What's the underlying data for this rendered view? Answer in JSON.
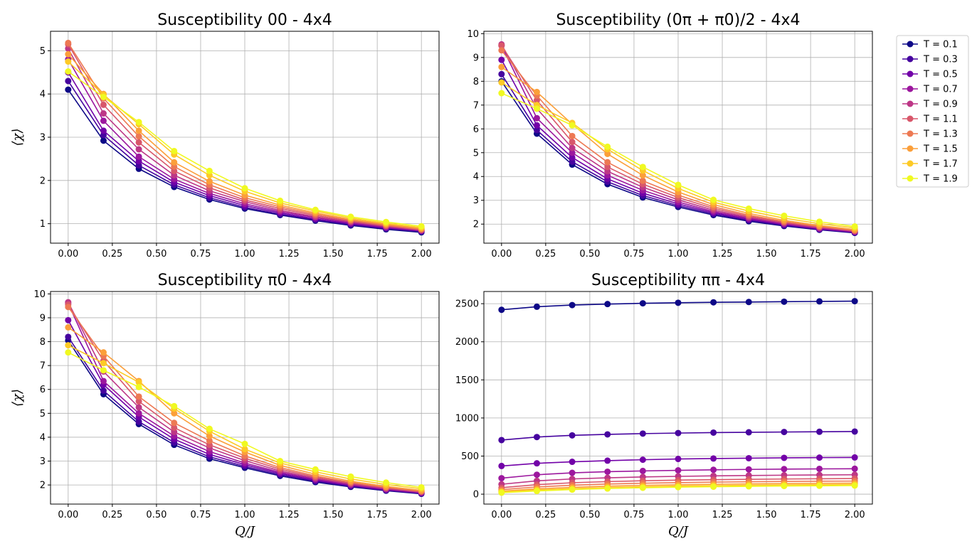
{
  "figure": {
    "colors": [
      "#0d0887",
      "#46039f",
      "#7201a8",
      "#9c179e",
      "#bd3786",
      "#d8576b",
      "#ed7953",
      "#fb9f3a",
      "#fdca26",
      "#f0f921"
    ],
    "legend_labels": [
      "T = 0.1",
      "T = 0.3",
      "T = 0.5",
      "T = 0.7",
      "T = 0.9",
      "T = 1.1",
      "T = 1.3",
      "T = 1.5",
      "T = 1.7",
      "T = 1.9"
    ]
  },
  "chart_data": [
    {
      "type": "line",
      "title": "Susceptibility 00 - 4x4",
      "xlabel": "",
      "ylabel": "⟨χ⟩",
      "xlim": [
        -0.1,
        2.1
      ],
      "ylim": [
        0.55,
        5.45
      ],
      "xticks": [
        0.0,
        0.25,
        0.5,
        0.75,
        1.0,
        1.25,
        1.5,
        1.75,
        2.0
      ],
      "xtick_labels": [
        "0.00",
        "0.25",
        "0.50",
        "0.75",
        "1.00",
        "1.25",
        "1.50",
        "1.75",
        "2.00"
      ],
      "yticks": [
        1,
        2,
        3,
        4,
        5
      ],
      "ytick_labels": [
        "1",
        "2",
        "3",
        "4",
        "5"
      ],
      "grid": true,
      "x": [
        0.0,
        0.2,
        0.4,
        0.6,
        0.8,
        1.0,
        1.2,
        1.4,
        1.6,
        1.8,
        2.0
      ],
      "series": [
        {
          "name": "T = 0.1",
          "values": [
            4.1,
            2.92,
            2.27,
            1.85,
            1.56,
            1.35,
            1.2,
            1.07,
            0.96,
            0.87,
            0.8
          ]
        },
        {
          "name": "T = 0.3",
          "values": [
            4.3,
            3.05,
            2.35,
            1.9,
            1.6,
            1.38,
            1.22,
            1.09,
            0.98,
            0.89,
            0.82
          ]
        },
        {
          "name": "T = 0.5",
          "values": [
            4.5,
            3.15,
            2.45,
            1.96,
            1.65,
            1.42,
            1.25,
            1.11,
            1.0,
            0.9,
            0.83
          ]
        },
        {
          "name": "T = 0.7",
          "values": [
            4.8,
            3.38,
            2.55,
            2.03,
            1.7,
            1.46,
            1.28,
            1.14,
            1.02,
            0.92,
            0.84
          ]
        },
        {
          "name": "T = 0.9",
          "values": [
            5.05,
            3.55,
            2.72,
            2.12,
            1.76,
            1.51,
            1.31,
            1.16,
            1.04,
            0.94,
            0.85
          ]
        },
        {
          "name": "T = 1.1",
          "values": [
            5.15,
            3.75,
            2.88,
            2.22,
            1.83,
            1.55,
            1.35,
            1.19,
            1.06,
            0.95,
            0.86
          ]
        },
        {
          "name": "T = 1.3",
          "values": [
            5.18,
            3.9,
            3.02,
            2.32,
            1.9,
            1.6,
            1.39,
            1.22,
            1.08,
            0.97,
            0.87
          ]
        },
        {
          "name": "T = 1.5",
          "values": [
            4.92,
            4.0,
            3.15,
            2.42,
            1.98,
            1.66,
            1.43,
            1.25,
            1.1,
            0.99,
            0.89
          ]
        },
        {
          "name": "T = 1.7",
          "values": [
            4.75,
            3.98,
            3.3,
            2.6,
            2.12,
            1.75,
            1.48,
            1.29,
            1.13,
            1.01,
            0.91
          ]
        },
        {
          "name": "T = 1.9",
          "values": [
            4.52,
            3.93,
            3.35,
            2.68,
            2.22,
            1.82,
            1.53,
            1.32,
            1.16,
            1.04,
            0.94
          ]
        }
      ]
    },
    {
      "type": "line",
      "title": "Susceptibility (0π + π0)/2 - 4x4",
      "xlabel": "",
      "ylabel": "",
      "xlim": [
        -0.1,
        2.1
      ],
      "ylim": [
        1.2,
        10.1
      ],
      "xticks": [
        0.0,
        0.25,
        0.5,
        0.75,
        1.0,
        1.25,
        1.5,
        1.75,
        2.0
      ],
      "xtick_labels": [
        "0.00",
        "0.25",
        "0.50",
        "0.75",
        "1.00",
        "1.25",
        "1.50",
        "1.75",
        "2.00"
      ],
      "yticks": [
        2,
        3,
        4,
        5,
        6,
        7,
        8,
        9,
        10
      ],
      "ytick_labels": [
        "2",
        "3",
        "4",
        "5",
        "6",
        "7",
        "8",
        "9",
        "10"
      ],
      "grid": true,
      "x": [
        0.0,
        0.2,
        0.4,
        0.6,
        0.8,
        1.0,
        1.2,
        1.4,
        1.6,
        1.8,
        2.0
      ],
      "series": [
        {
          "name": "T = 0.1",
          "values": [
            8.0,
            5.8,
            4.5,
            3.68,
            3.12,
            2.72,
            2.38,
            2.12,
            1.92,
            1.76,
            1.63
          ]
        },
        {
          "name": "T = 0.3",
          "values": [
            8.3,
            5.95,
            4.62,
            3.78,
            3.2,
            2.78,
            2.43,
            2.16,
            1.95,
            1.78,
            1.65
          ]
        },
        {
          "name": "T = 0.5",
          "values": [
            8.9,
            6.15,
            4.8,
            3.9,
            3.3,
            2.85,
            2.48,
            2.2,
            1.98,
            1.8,
            1.66
          ]
        },
        {
          "name": "T = 0.7",
          "values": [
            9.5,
            6.45,
            5.0,
            4.05,
            3.42,
            2.93,
            2.53,
            2.24,
            2.01,
            1.82,
            1.68
          ]
        },
        {
          "name": "T = 0.9",
          "values": [
            9.55,
            6.85,
            5.2,
            4.22,
            3.55,
            3.02,
            2.59,
            2.28,
            2.04,
            1.85,
            1.7
          ]
        },
        {
          "name": "T = 1.1",
          "values": [
            9.5,
            7.2,
            5.45,
            4.4,
            3.68,
            3.12,
            2.66,
            2.33,
            2.08,
            1.88,
            1.72
          ]
        },
        {
          "name": "T = 1.3",
          "values": [
            9.3,
            7.4,
            5.7,
            4.6,
            3.82,
            3.22,
            2.73,
            2.38,
            2.11,
            1.9,
            1.74
          ]
        },
        {
          "name": "T = 1.5",
          "values": [
            8.6,
            7.55,
            6.2,
            4.95,
            4.05,
            3.35,
            2.82,
            2.45,
            2.16,
            1.94,
            1.77
          ]
        },
        {
          "name": "T = 1.7",
          "values": [
            7.95,
            7.0,
            6.25,
            5.15,
            4.25,
            3.5,
            2.92,
            2.55,
            2.25,
            2.02,
            1.84
          ]
        },
        {
          "name": "T = 1.9",
          "values": [
            7.5,
            6.85,
            6.15,
            5.25,
            4.4,
            3.65,
            3.02,
            2.65,
            2.35,
            2.1,
            1.9
          ]
        }
      ]
    },
    {
      "type": "line",
      "title": "Susceptibility π0 - 4x4",
      "xlabel": "Q/J",
      "ylabel": "⟨χ⟩",
      "xlim": [
        -0.1,
        2.1
      ],
      "ylim": [
        1.2,
        10.1
      ],
      "xticks": [
        0.0,
        0.25,
        0.5,
        0.75,
        1.0,
        1.25,
        1.5,
        1.75,
        2.0
      ],
      "xtick_labels": [
        "0.00",
        "0.25",
        "0.50",
        "0.75",
        "1.00",
        "1.25",
        "1.50",
        "1.75",
        "2.00"
      ],
      "yticks": [
        2,
        3,
        4,
        5,
        6,
        7,
        8,
        9,
        10
      ],
      "ytick_labels": [
        "2",
        "3",
        "4",
        "5",
        "6",
        "7",
        "8",
        "9",
        "10"
      ],
      "grid": true,
      "x": [
        0.0,
        0.2,
        0.4,
        0.6,
        0.8,
        1.0,
        1.2,
        1.4,
        1.6,
        1.8,
        2.0
      ],
      "series": [
        {
          "name": "T = 0.1",
          "values": [
            8.05,
            5.8,
            4.55,
            3.68,
            3.1,
            2.72,
            2.38,
            2.12,
            1.92,
            1.76,
            1.63
          ]
        },
        {
          "name": "T = 0.3",
          "values": [
            8.2,
            5.95,
            4.65,
            3.78,
            3.18,
            2.78,
            2.43,
            2.16,
            1.95,
            1.78,
            1.65
          ]
        },
        {
          "name": "T = 0.5",
          "values": [
            8.9,
            6.2,
            4.85,
            3.92,
            3.28,
            2.85,
            2.48,
            2.2,
            1.98,
            1.8,
            1.66
          ]
        },
        {
          "name": "T = 0.7",
          "values": [
            9.6,
            6.35,
            5.0,
            4.05,
            3.4,
            2.92,
            2.53,
            2.24,
            2.01,
            1.82,
            1.68
          ]
        },
        {
          "name": "T = 0.9",
          "values": [
            9.65,
            6.75,
            5.25,
            4.22,
            3.55,
            3.02,
            2.59,
            2.28,
            2.04,
            1.85,
            1.7
          ]
        },
        {
          "name": "T = 1.1",
          "values": [
            9.55,
            7.2,
            5.5,
            4.4,
            3.68,
            3.12,
            2.66,
            2.33,
            2.08,
            1.88,
            1.72
          ]
        },
        {
          "name": "T = 1.3",
          "values": [
            9.45,
            7.4,
            5.7,
            4.6,
            3.85,
            3.22,
            2.73,
            2.38,
            2.11,
            1.9,
            1.74
          ]
        },
        {
          "name": "T = 1.5",
          "values": [
            8.6,
            7.55,
            6.35,
            5.0,
            4.05,
            3.38,
            2.82,
            2.45,
            2.16,
            1.94,
            1.77
          ]
        },
        {
          "name": "T = 1.7",
          "values": [
            7.85,
            7.1,
            6.3,
            5.2,
            4.25,
            3.5,
            2.92,
            2.55,
            2.25,
            2.02,
            1.84
          ]
        },
        {
          "name": "T = 1.9",
          "values": [
            7.55,
            6.8,
            6.1,
            5.3,
            4.35,
            3.72,
            3.0,
            2.65,
            2.35,
            2.1,
            1.9
          ]
        }
      ]
    },
    {
      "type": "line",
      "title": "Susceptibility ππ - 4x4",
      "xlabel": "Q/J",
      "ylabel": "",
      "xlim": [
        -0.1,
        2.1
      ],
      "ylim": [
        -130,
        2660
      ],
      "xticks": [
        0.0,
        0.25,
        0.5,
        0.75,
        1.0,
        1.25,
        1.5,
        1.75,
        2.0
      ],
      "xtick_labels": [
        "0.00",
        "0.25",
        "0.50",
        "0.75",
        "1.00",
        "1.25",
        "1.50",
        "1.75",
        "2.00"
      ],
      "yticks": [
        0,
        500,
        1000,
        1500,
        2000,
        2500
      ],
      "ytick_labels": [
        "0",
        "500",
        "1000",
        "1500",
        "2000",
        "2500"
      ],
      "grid": true,
      "x": [
        0.0,
        0.2,
        0.4,
        0.6,
        0.8,
        1.0,
        1.2,
        1.4,
        1.6,
        1.8,
        2.0
      ],
      "series": [
        {
          "name": "T = 0.1",
          "values": [
            2420,
            2460,
            2482,
            2495,
            2505,
            2512,
            2518,
            2522,
            2526,
            2530,
            2533
          ]
        },
        {
          "name": "T = 0.3",
          "values": [
            710,
            750,
            772,
            785,
            795,
            802,
            808,
            812,
            816,
            819,
            822
          ]
        },
        {
          "name": "T = 0.5",
          "values": [
            370,
            405,
            425,
            440,
            452,
            462,
            468,
            472,
            477,
            480,
            482
          ]
        },
        {
          "name": "T = 0.7",
          "values": [
            210,
            255,
            280,
            295,
            305,
            313,
            320,
            325,
            329,
            332,
            334
          ]
        },
        {
          "name": "T = 0.9",
          "values": [
            130,
            175,
            200,
            215,
            226,
            234,
            240,
            245,
            249,
            252,
            255
          ]
        },
        {
          "name": "T = 1.1",
          "values": [
            85,
            125,
            150,
            165,
            176,
            184,
            190,
            195,
            199,
            202,
            205
          ]
        },
        {
          "name": "T = 1.3",
          "values": [
            60,
            95,
            118,
            133,
            144,
            152,
            158,
            163,
            167,
            170,
            172
          ]
        },
        {
          "name": "T = 1.5",
          "values": [
            40,
            70,
            90,
            105,
            116,
            124,
            130,
            135,
            139,
            142,
            145
          ]
        },
        {
          "name": "T = 1.7",
          "values": [
            30,
            55,
            73,
            87,
            98,
            106,
            112,
            117,
            121,
            124,
            127
          ]
        },
        {
          "name": "T = 1.9",
          "values": [
            20,
            42,
            60,
            74,
            84,
            92,
            98,
            103,
            107,
            110,
            113
          ]
        }
      ]
    }
  ]
}
